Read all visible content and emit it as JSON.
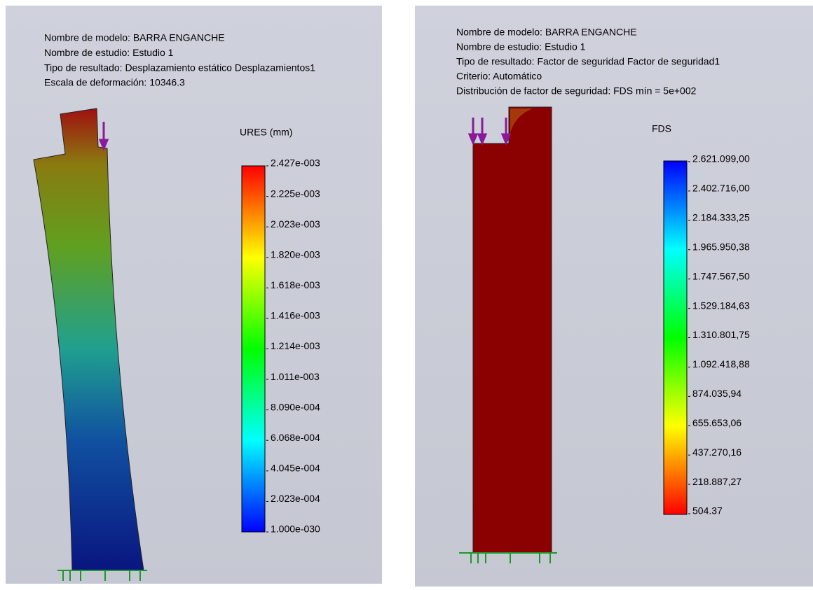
{
  "left_panel": {
    "info_lines": [
      "Nombre de modelo: BARRA ENGANCHE",
      "Nombre de estudio: Estudio 1",
      "Tipo de resultado: Desplazamiento estático Desplazamientos1",
      "Escala de deformación: 10346.3"
    ],
    "legend": {
      "title": "URES (mm)",
      "labels": [
        "2.427e-003",
        "2.225e-003",
        "2.023e-003",
        "1.820e-003",
        "1.618e-003",
        "1.416e-003",
        "1.214e-003",
        "1.011e-003",
        "8.090e-004",
        "6.068e-004",
        "4.045e-004",
        "2.023e-004",
        "1.000e-030"
      ]
    }
  },
  "right_panel": {
    "info_lines": [
      "Nombre de modelo: BARRA ENGANCHE",
      "Nombre de estudio: Estudio 1",
      "Tipo de resultado: Factor de seguridad Factor de seguridad1",
      "Criterio: Automático",
      "Distribución de factor de seguridad: FDS mín = 5e+002"
    ],
    "legend": {
      "title": "FDS",
      "labels": [
        "2.621.099,00",
        "2.402.716,00",
        "2.184.333,25",
        "1.965.950,38",
        "1.747.567,50",
        "1.529.184,63",
        "1.310.801,75",
        "1.092.418,88",
        "874.035,94",
        "655.653,06",
        "437.270,16",
        "218.887,27",
        "504.37"
      ]
    }
  }
}
